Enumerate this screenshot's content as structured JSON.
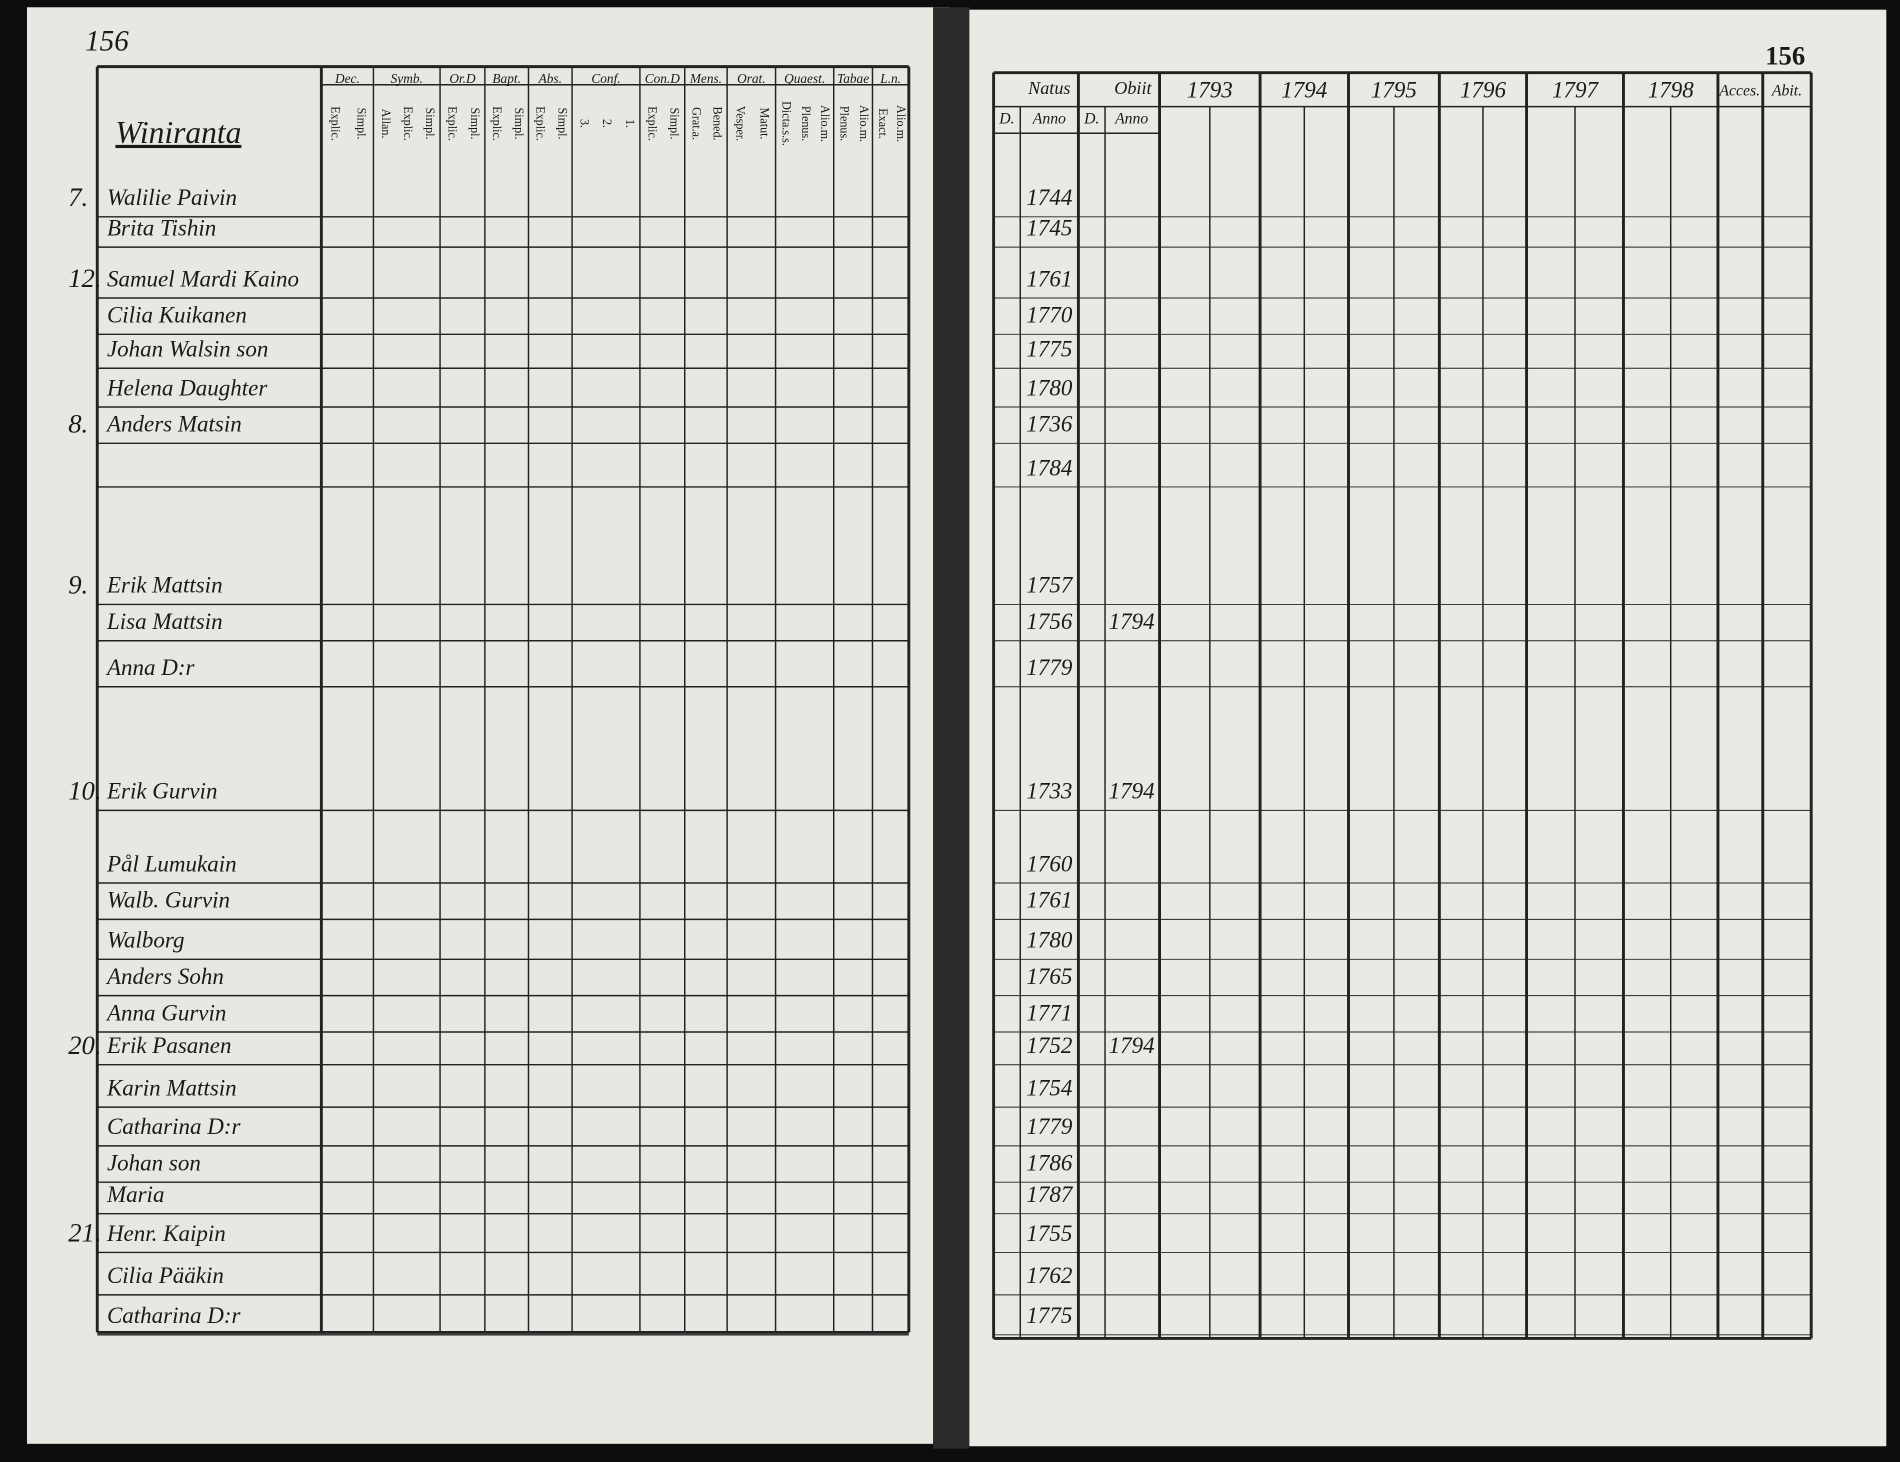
{
  "left_page": {
    "page_number": "156",
    "village": "Winiranta",
    "columns": [
      {
        "head": "Dec.",
        "sub": [
          "Explic.",
          "Simpl."
        ]
      },
      {
        "head": "Symb.",
        "sub": [
          "Allan.",
          "Explic.",
          "Simpl."
        ]
      },
      {
        "head": "Or.D",
        "sub": [
          "Explic.",
          "Simpl."
        ]
      },
      {
        "head": "Bapt.",
        "sub": [
          "Explic.",
          "Simpl."
        ]
      },
      {
        "head": "Abs.",
        "sub": [
          "Explic.",
          "Simpl."
        ]
      },
      {
        "head": "Conf.",
        "sub": [
          "3.",
          "2.",
          "1."
        ]
      },
      {
        "head": "Con.D",
        "sub": [
          "Explic.",
          "Simpl."
        ]
      },
      {
        "head": "Mens.",
        "sub": [
          "Grat.a.",
          "Bened."
        ]
      },
      {
        "head": "Orat.",
        "sub": [
          "Vesper.",
          "Matut."
        ]
      },
      {
        "head": "Quaest.",
        "sub": [
          "Dicta.s.s.",
          "Plenus.",
          "Alio.m."
        ]
      },
      {
        "head": "Tabae",
        "sub": [
          "Plenus.",
          "Alio.m."
        ]
      },
      {
        "head": "L.n.",
        "sub": [
          "Exact.",
          "Alio.m."
        ]
      }
    ]
  },
  "right_page": {
    "page_number": "156",
    "headers": {
      "natus": "Natus",
      "obiit": "Obiit",
      "years": [
        "1793",
        "1794",
        "1795",
        "1796",
        "1797",
        "1798"
      ],
      "acces": "Acces.",
      "abit": "Abit."
    },
    "subheaders": {
      "natus_d": "D.",
      "natus_anno": "Anno",
      "obiit_d": "D.",
      "obiit_anno": "Anno"
    }
  },
  "rows": [
    {
      "house": "7.",
      "name": "Walilie Paivin",
      "natus": "1744"
    },
    {
      "name": "Brita Tishin",
      "natus": "1745"
    },
    {
      "house": "12.",
      "name": "Samuel Mardi Kaino",
      "natus": "1761"
    },
    {
      "name": "Cilia Kuikanen",
      "natus": "1770"
    },
    {
      "name": "Johan Walsin son",
      "natus": "1775"
    },
    {
      "name": "Helena Daughter",
      "natus": "1780"
    },
    {
      "house": "8.",
      "name": "Anders Matsin",
      "natus": "1736"
    },
    {
      "natus": "1784"
    },
    {
      "house": "9.",
      "name": "Erik Mattsin",
      "natus": "1757"
    },
    {
      "name": "Lisa Mattsin",
      "natus": "1756",
      "obiit": "1794"
    },
    {
      "name": "Anna D:r",
      "natus": "1779"
    },
    {
      "house": "10.",
      "name": "Erik Gurvin",
      "natus": "1733",
      "obiit": "1794"
    },
    {
      "name": "Pål Lumukain",
      "natus": "1760"
    },
    {
      "name": "Walb. Gurvin",
      "natus": "1761"
    },
    {
      "name": "Walborg",
      "natus": "1780"
    },
    {
      "name": "Anders Sohn",
      "natus": "1765"
    },
    {
      "name": "Anna Gurvin",
      "natus": "1771"
    },
    {
      "house": "20.",
      "name": "Erik Pasanen",
      "natus": "1752",
      "obiit": "1794"
    },
    {
      "name": "Karin Mattsin",
      "natus": "1754"
    },
    {
      "name": "Catharina D:r",
      "natus": "1779"
    },
    {
      "name": "Johan son",
      "natus": "1786"
    },
    {
      "name": "Maria",
      "natus": "1787"
    },
    {
      "house": "21.",
      "name": "Henr. Kaipin",
      "natus": "1755"
    },
    {
      "name": "Cilia Pääkin",
      "natus": "1762"
    },
    {
      "name": "Catharina D:r",
      "natus": "1775"
    }
  ]
}
